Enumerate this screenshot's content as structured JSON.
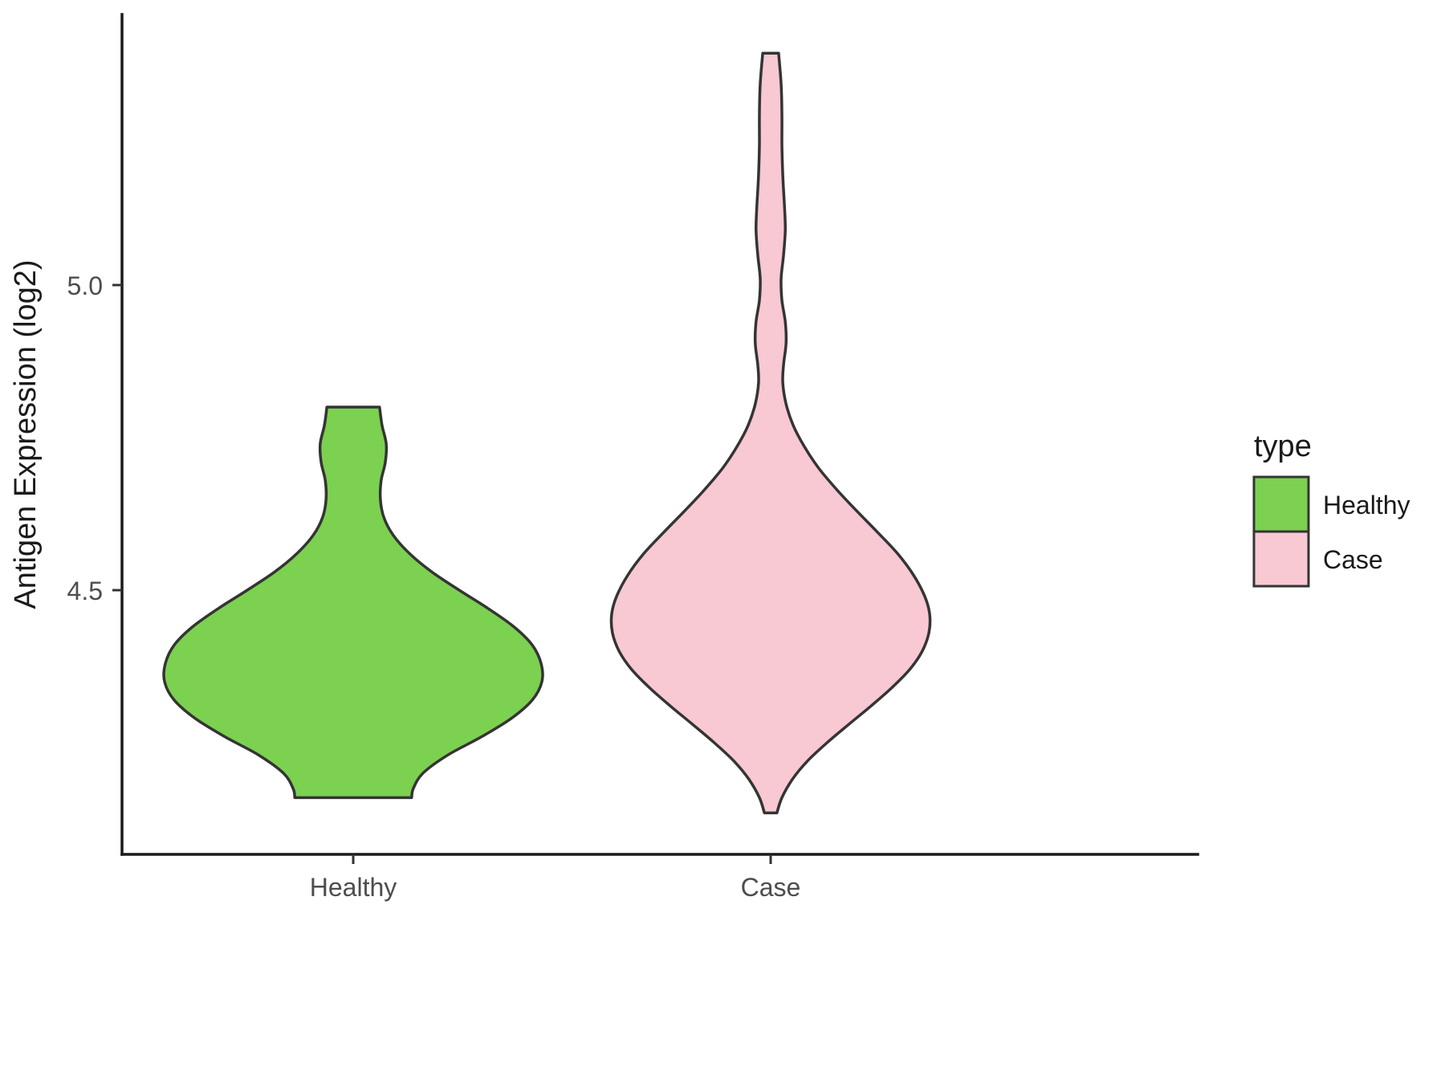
{
  "chart_data": {
    "type": "violin",
    "title": "",
    "xlabel": "",
    "ylabel": "Antigen Expression (log2)",
    "categories": [
      "Healthy",
      "Case"
    ],
    "ylim": [
      4.07,
      5.44
    ],
    "grid": false,
    "yticks": [
      {
        "value": 5.0,
        "label": "5.0"
      },
      {
        "value": 4.5,
        "label": "4.5"
      }
    ],
    "legend": {
      "title": "type",
      "position": "right",
      "entries": [
        {
          "label": "Healthy",
          "color": "#7CD150"
        },
        {
          "label": "Case",
          "color": "#F8C8D3"
        }
      ]
    },
    "outline_color": "#343434",
    "profile_format": "[expression_value_log2, half_width_in_category_units]",
    "series": [
      {
        "name": "Healthy",
        "color": "#7CD150",
        "min": 4.16,
        "max": 4.8,
        "peak": 4.36,
        "profile": [
          [
            4.8,
            0.063
          ],
          [
            4.77,
            0.069
          ],
          [
            4.74,
            0.079
          ],
          [
            4.71,
            0.077
          ],
          [
            4.68,
            0.067
          ],
          [
            4.65,
            0.065
          ],
          [
            4.62,
            0.073
          ],
          [
            4.59,
            0.096
          ],
          [
            4.56,
            0.135
          ],
          [
            4.53,
            0.188
          ],
          [
            4.5,
            0.254
          ],
          [
            4.47,
            0.323
          ],
          [
            4.44,
            0.385
          ],
          [
            4.41,
            0.429
          ],
          [
            4.38,
            0.45
          ],
          [
            4.35,
            0.452
          ],
          [
            4.32,
            0.429
          ],
          [
            4.29,
            0.379
          ],
          [
            4.26,
            0.308
          ],
          [
            4.23,
            0.227
          ],
          [
            4.2,
            0.167
          ],
          [
            4.175,
            0.144
          ],
          [
            4.16,
            0.14
          ]
        ]
      },
      {
        "name": "Case",
        "color": "#F8C8D3",
        "min": 4.13,
        "max": 5.38,
        "peak": 4.46,
        "profile": [
          [
            5.38,
            0.019
          ],
          [
            5.33,
            0.025
          ],
          [
            5.28,
            0.027
          ],
          [
            5.23,
            0.027
          ],
          [
            5.18,
            0.029
          ],
          [
            5.13,
            0.033
          ],
          [
            5.09,
            0.035
          ],
          [
            5.05,
            0.031
          ],
          [
            5.01,
            0.025
          ],
          [
            4.975,
            0.027
          ],
          [
            4.94,
            0.035
          ],
          [
            4.905,
            0.037
          ],
          [
            4.87,
            0.031
          ],
          [
            4.84,
            0.029
          ],
          [
            4.805,
            0.037
          ],
          [
            4.77,
            0.054
          ],
          [
            4.735,
            0.081
          ],
          [
            4.7,
            0.115
          ],
          [
            4.665,
            0.158
          ],
          [
            4.63,
            0.206
          ],
          [
            4.595,
            0.256
          ],
          [
            4.56,
            0.304
          ],
          [
            4.525,
            0.342
          ],
          [
            4.49,
            0.369
          ],
          [
            4.46,
            0.381
          ],
          [
            4.43,
            0.379
          ],
          [
            4.4,
            0.363
          ],
          [
            4.37,
            0.333
          ],
          [
            4.34,
            0.29
          ],
          [
            4.31,
            0.24
          ],
          [
            4.28,
            0.187
          ],
          [
            4.25,
            0.135
          ],
          [
            4.22,
            0.088
          ],
          [
            4.19,
            0.052
          ],
          [
            4.16,
            0.027
          ],
          [
            4.135,
            0.015
          ]
        ]
      }
    ]
  }
}
